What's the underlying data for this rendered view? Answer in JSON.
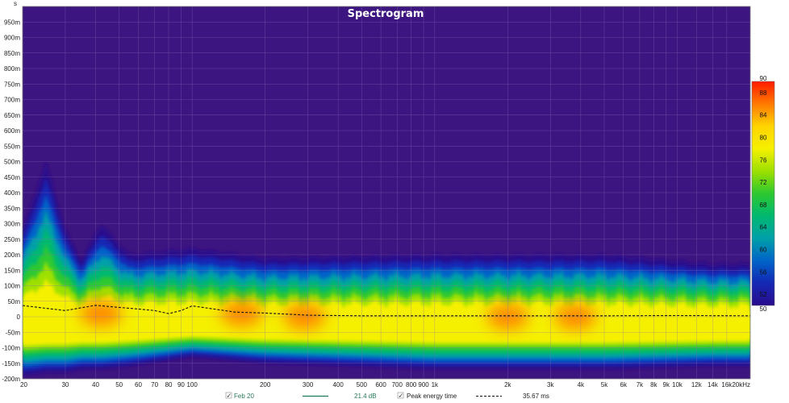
{
  "chart_data": {
    "type": "heatmap",
    "title": "Spectrogram",
    "y_unit": "s",
    "x_scale": "log",
    "x_range_hz": [
      20,
      20000
    ],
    "y_range": [
      -0.2,
      1.0
    ],
    "x_ticks": [
      {
        "label": "20",
        "value": 20
      },
      {
        "label": "30",
        "value": 30
      },
      {
        "label": "40",
        "value": 40
      },
      {
        "label": "50",
        "value": 50
      },
      {
        "label": "60",
        "value": 60
      },
      {
        "label": "70",
        "value": 70
      },
      {
        "label": "80",
        "value": 80
      },
      {
        "label": "90",
        "value": 90
      },
      {
        "label": "100",
        "value": 100
      },
      {
        "label": "200",
        "value": 200
      },
      {
        "label": "300",
        "value": 300
      },
      {
        "label": "400",
        "value": 400
      },
      {
        "label": "500",
        "value": 500
      },
      {
        "label": "600",
        "value": 600
      },
      {
        "label": "700",
        "value": 700
      },
      {
        "label": "800",
        "value": 800
      },
      {
        "label": "900",
        "value": 900
      },
      {
        "label": "1k",
        "value": 1000
      },
      {
        "label": "2k",
        "value": 2000
      },
      {
        "label": "3k",
        "value": 3000
      },
      {
        "label": "4k",
        "value": 4000
      },
      {
        "label": "5k",
        "value": 5000
      },
      {
        "label": "6k",
        "value": 6000
      },
      {
        "label": "7k",
        "value": 7000
      },
      {
        "label": "8k",
        "value": 8000
      },
      {
        "label": "9k",
        "value": 9000
      },
      {
        "label": "10k",
        "value": 10000
      },
      {
        "label": "12k",
        "value": 12000
      },
      {
        "label": "14k",
        "value": 14000
      },
      {
        "label": "16k",
        "value": 16000
      },
      {
        "label": "20kHz",
        "value": 20000
      }
    ],
    "y_ticks": [
      {
        "label": "950m",
        "value": 0.95
      },
      {
        "label": "900m",
        "value": 0.9
      },
      {
        "label": "850m",
        "value": 0.85
      },
      {
        "label": "800m",
        "value": 0.8
      },
      {
        "label": "750m",
        "value": 0.75
      },
      {
        "label": "700m",
        "value": 0.7
      },
      {
        "label": "650m",
        "value": 0.65
      },
      {
        "label": "600m",
        "value": 0.6
      },
      {
        "label": "550m",
        "value": 0.55
      },
      {
        "label": "500m",
        "value": 0.5
      },
      {
        "label": "450m",
        "value": 0.45
      },
      {
        "label": "400m",
        "value": 0.4
      },
      {
        "label": "350m",
        "value": 0.35
      },
      {
        "label": "300m",
        "value": 0.3
      },
      {
        "label": "250m",
        "value": 0.25
      },
      {
        "label": "200m",
        "value": 0.2
      },
      {
        "label": "150m",
        "value": 0.15
      },
      {
        "label": "100m",
        "value": 0.1
      },
      {
        "label": "50m",
        "value": 0.05
      },
      {
        "label": "0",
        "value": 0
      },
      {
        "label": "-50m",
        "value": -0.05
      },
      {
        "label": "-100m",
        "value": -0.1
      },
      {
        "label": "-150m",
        "value": -0.15
      },
      {
        "label": "-200m",
        "value": -0.2
      }
    ],
    "colorbar": {
      "range": [
        50,
        90
      ],
      "tick_labels": [
        "90",
        "88",
        "84",
        "80",
        "76",
        "72",
        "68",
        "64",
        "60",
        "56",
        "52",
        "50"
      ],
      "tick_values": [
        90,
        88,
        84,
        80,
        76,
        72,
        68,
        64,
        60,
        56,
        52,
        50
      ],
      "colors": [
        "#ff1a00",
        "#ff7a00",
        "#ffd400",
        "#f5f000",
        "#9ee000",
        "#2ec830",
        "#00b870",
        "#00a0a8",
        "#0064c8",
        "#1428b4",
        "#2a0c8c"
      ]
    },
    "decay_envelope": [
      {
        "f": 20,
        "top": 0.28,
        "bottom": -0.19
      },
      {
        "f": 25,
        "top": 0.5,
        "bottom": -0.18
      },
      {
        "f": 30,
        "top": 0.28,
        "bottom": -0.18
      },
      {
        "f": 35,
        "top": 0.18,
        "bottom": -0.17
      },
      {
        "f": 42,
        "top": 0.3,
        "bottom": -0.17
      },
      {
        "f": 55,
        "top": 0.2,
        "bottom": -0.16
      },
      {
        "f": 100,
        "top": 0.22,
        "bottom": -0.13
      },
      {
        "f": 200,
        "top": 0.19,
        "bottom": -0.15
      },
      {
        "f": 1000,
        "top": 0.2,
        "bottom": -0.17
      },
      {
        "f": 5000,
        "top": 0.2,
        "bottom": -0.17
      },
      {
        "f": 14000,
        "top": 0.17,
        "bottom": -0.16
      },
      {
        "f": 20000,
        "top": 0.17,
        "bottom": -0.16
      }
    ],
    "hot_spots": [
      {
        "f": 42,
        "t": 0.01,
        "level": 88
      },
      {
        "f": 160,
        "t": 0.01,
        "level": 86
      },
      {
        "f": 290,
        "t": 0.0,
        "level": 86
      },
      {
        "f": 2000,
        "t": 0.0,
        "level": 85
      },
      {
        "f": 3800,
        "t": 0.0,
        "level": 85
      }
    ],
    "series": [
      {
        "name": "Peak energy time",
        "style": "dashed",
        "x": [
          20,
          30,
          40,
          50,
          60,
          70,
          80,
          90,
          100,
          150,
          200,
          300,
          500,
          1000,
          2000,
          5000,
          10000,
          20000
        ],
        "y": [
          0.036,
          0.02,
          0.037,
          0.03,
          0.025,
          0.02,
          0.01,
          0.02,
          0.035,
          0.015,
          0.012,
          0.005,
          0.003,
          0.003,
          0.003,
          0.003,
          0.004,
          0.003
        ]
      }
    ]
  },
  "legend": {
    "item1_label": "Feb 20",
    "item1_checked": "✓",
    "item1_value": "21.4 dB",
    "item2_label": "Peak energy time",
    "item2_checked": "✓",
    "item2_value": "35.67 ms"
  }
}
